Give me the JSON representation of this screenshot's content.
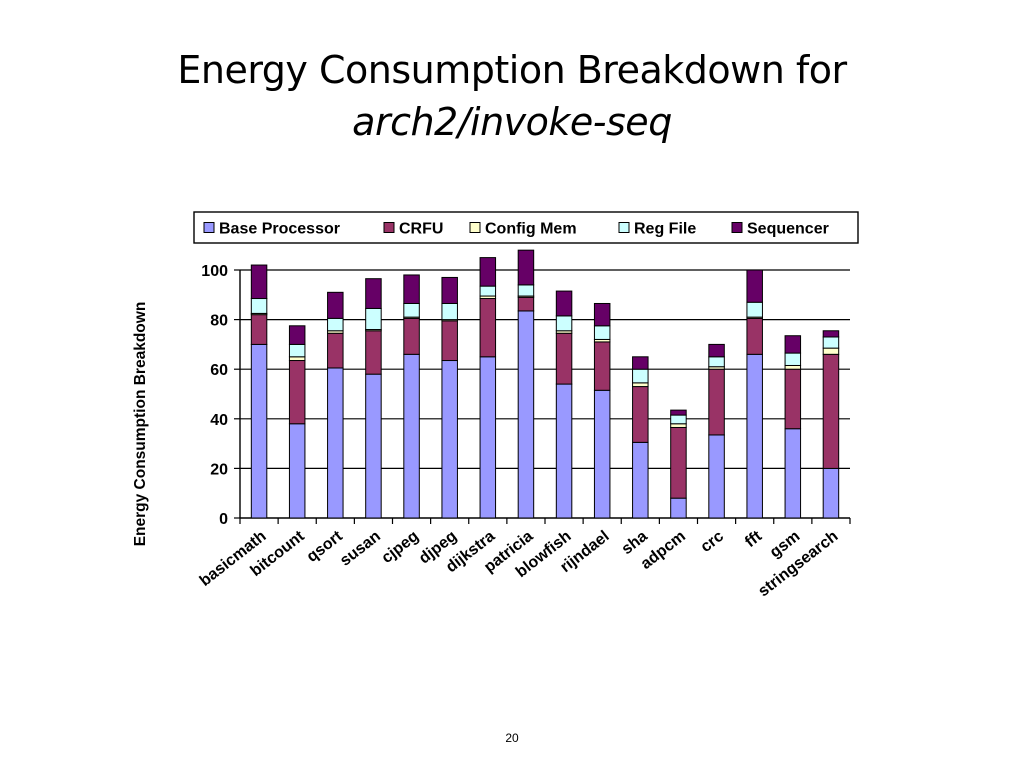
{
  "slide": {
    "title_line1": "Energy Consumption Breakdown for",
    "title_line2": "arch2/invoke-seq",
    "page_number": "20"
  },
  "chart_data": {
    "type": "bar",
    "stacked": true,
    "ylabel": "Energy Consumption Breakdown",
    "xlabel": "",
    "ylim": [
      0,
      100
    ],
    "yticks": [
      0,
      20,
      40,
      60,
      80,
      100
    ],
    "grid": true,
    "legend_position": "top",
    "categories": [
      "basicmath",
      "bitcount",
      "qsort",
      "susan",
      "cjpeg",
      "djpeg",
      "dijkstra",
      "patricia",
      "blowfish",
      "rijndael",
      "sha",
      "adpcm",
      "crc",
      "fft",
      "gsm",
      "stringsearch"
    ],
    "series": [
      {
        "name": "Base Processor",
        "color": "#9999ff",
        "values": [
          70,
          38,
          60.5,
          58,
          66,
          63.5,
          65,
          83.5,
          54,
          51.5,
          30.5,
          8,
          33.5,
          66,
          36,
          20
        ]
      },
      {
        "name": "CRFU",
        "color": "#993366",
        "values": [
          12,
          25.5,
          14,
          17.5,
          14.5,
          16,
          23.5,
          5.5,
          20.5,
          19.5,
          22.5,
          28.5,
          26.5,
          14.5,
          24,
          46
        ]
      },
      {
        "name": "Config Mem",
        "color": "#ffffcc",
        "values": [
          0.5,
          1.5,
          1,
          0.5,
          0.5,
          0.5,
          1,
          0.5,
          1,
          1,
          1.5,
          1.5,
          1,
          0.5,
          1.5,
          2.5
        ]
      },
      {
        "name": "Reg File",
        "color": "#ccffff",
        "values": [
          6,
          5,
          5,
          8.5,
          5.5,
          6.5,
          4,
          4.5,
          6,
          5.5,
          5.5,
          3.5,
          4,
          6,
          5,
          4.5
        ]
      },
      {
        "name": "Sequencer",
        "color": "#660066",
        "values": [
          13.5,
          7.5,
          10.5,
          12,
          11.5,
          10.5,
          11.5,
          14,
          10,
          9,
          5,
          2,
          5,
          13,
          7,
          2.5
        ]
      }
    ]
  }
}
